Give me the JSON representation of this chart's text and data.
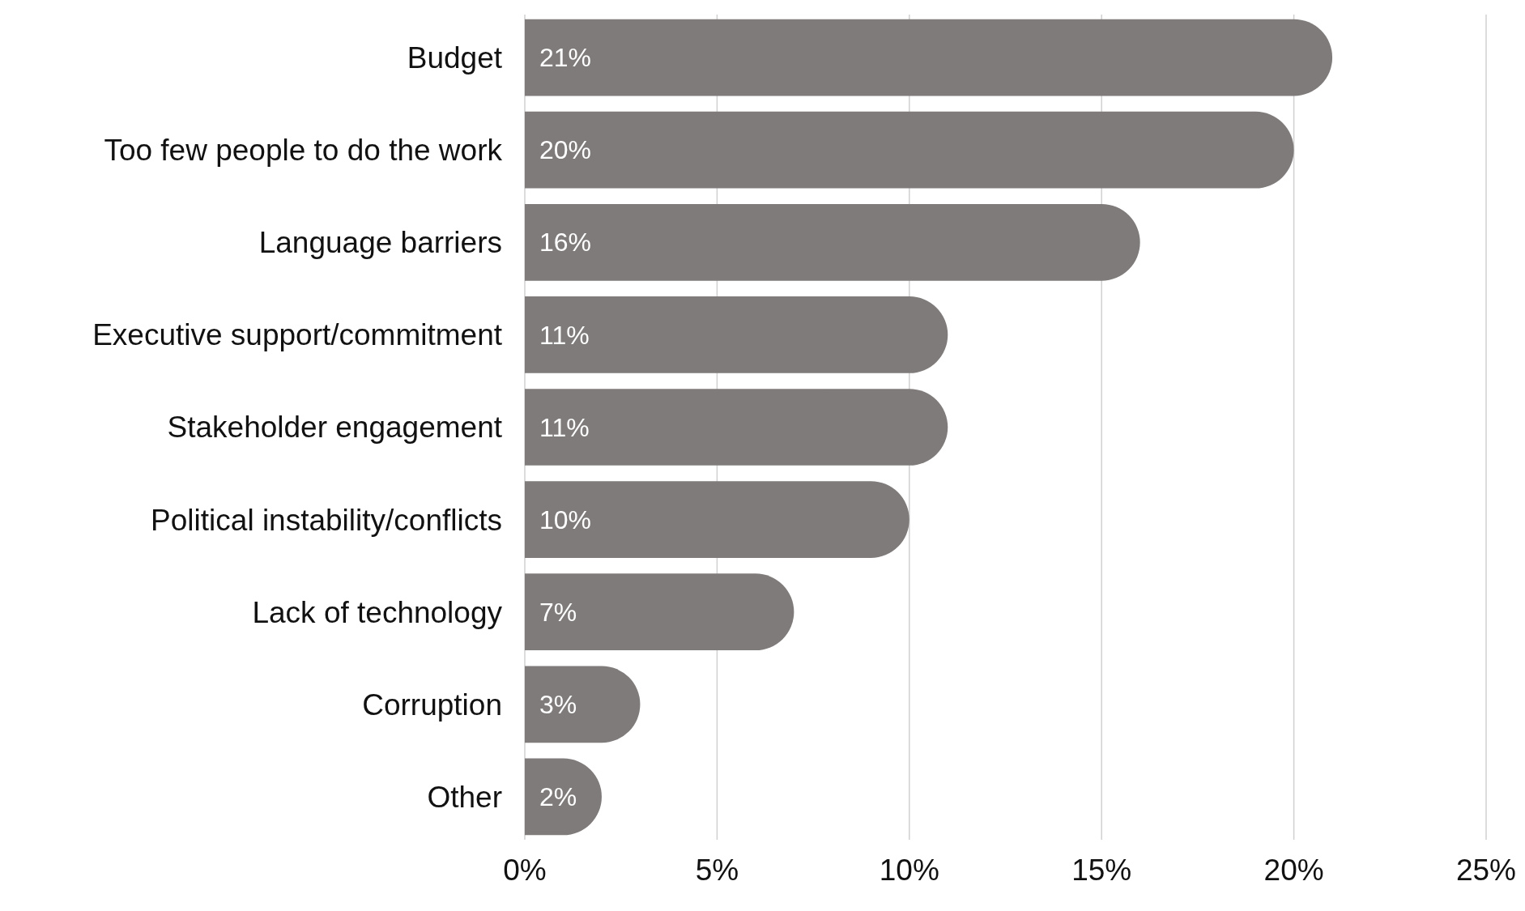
{
  "chart_data": {
    "type": "bar",
    "orientation": "horizontal",
    "categories": [
      "Budget",
      "Too few people to do the work",
      "Language barriers",
      "Executive support/commitment",
      "Stakeholder engagement",
      "Political instability/conflicts",
      "Lack of technology",
      "Corruption",
      "Other"
    ],
    "values": [
      21,
      20,
      16,
      11,
      11,
      10,
      7,
      3,
      2
    ],
    "value_labels": [
      "21%",
      "20%",
      "16%",
      "11%",
      "11%",
      "10%",
      "7%",
      "3%",
      "2%"
    ],
    "color": "#7f7b7a",
    "xlim": [
      0,
      25
    ],
    "xticks": [
      {
        "value": 0,
        "label": "0%"
      },
      {
        "value": 5,
        "label": "5%"
      },
      {
        "value": 10,
        "label": "10%"
      },
      {
        "value": 15,
        "label": "15%"
      },
      {
        "value": 20,
        "label": "20%"
      },
      {
        "value": 25,
        "label": "25%"
      }
    ],
    "grid": "x"
  }
}
